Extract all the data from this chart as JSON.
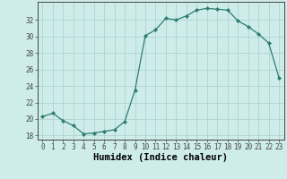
{
  "xlabel": "Humidex (Indice chaleur)",
  "x": [
    0,
    1,
    2,
    3,
    4,
    5,
    6,
    7,
    8,
    9,
    10,
    11,
    12,
    13,
    14,
    15,
    16,
    17,
    18,
    19,
    20,
    21,
    22,
    23
  ],
  "y": [
    20.3,
    20.7,
    19.8,
    19.2,
    18.2,
    18.3,
    18.5,
    18.7,
    19.7,
    23.5,
    30.1,
    30.8,
    32.2,
    32.0,
    32.5,
    33.2,
    33.4,
    33.3,
    33.2,
    31.9,
    31.2,
    30.3,
    29.2,
    25.0
  ],
  "line_color": "#2e7d6e",
  "marker": "D",
  "marker_size": 2.0,
  "bg_color": "#ceecea",
  "grid_color": "#aed4d0",
  "ylim": [
    17.5,
    34.2
  ],
  "yticks": [
    18,
    20,
    22,
    24,
    26,
    28,
    30,
    32
  ],
  "xticks": [
    0,
    1,
    2,
    3,
    4,
    5,
    6,
    7,
    8,
    9,
    10,
    11,
    12,
    13,
    14,
    15,
    16,
    17,
    18,
    19,
    20,
    21,
    22,
    23
  ],
  "tick_fontsize": 5.5,
  "xlabel_fontsize": 7.5,
  "axis_color": "#444444",
  "linewidth": 0.9
}
